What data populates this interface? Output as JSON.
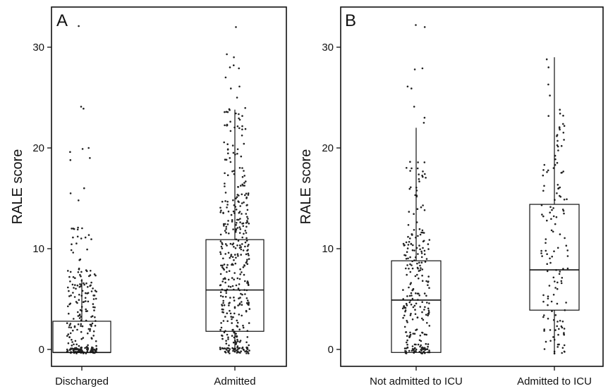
{
  "chart_data": [
    {
      "type": "box",
      "panel_label": "A",
      "ylabel": "RALE score",
      "ylim": [
        -1,
        33
      ],
      "yticks": [
        0,
        10,
        20,
        30
      ],
      "categories": [
        "Discharged",
        "Admitted"
      ],
      "boxes": [
        {
          "category": "Discharged",
          "q1": -0.3,
          "median": -0.3,
          "q3": 2.8,
          "whisker_low": -0.3,
          "whisker_high": 7.0
        },
        {
          "category": "Admitted",
          "q1": 1.8,
          "median": 5.9,
          "q3": 10.9,
          "whisker_low": -0.3,
          "whisker_high": 23.8
        }
      ],
      "points": [
        {
          "category": "Discharged",
          "n_at_zero": 90,
          "n_low": 140,
          "low_range": [
            0,
            8
          ],
          "n_mid": 16,
          "mid_range": [
            8,
            12.2
          ],
          "outliers": [
            32.1,
            24.1,
            23.9,
            20.0,
            19.9,
            19.6,
            19.0,
            18.8,
            16.0,
            15.5,
            14.8,
            12.1,
            12.0,
            12.0,
            11.9
          ]
        },
        {
          "category": "Admitted",
          "n_at_zero": 45,
          "n_low": 300,
          "low_range": [
            0,
            16
          ],
          "n_mid": 60,
          "mid_range": [
            16,
            24
          ],
          "outliers": [
            32.0,
            29.3,
            29.0,
            28.2,
            28.0,
            27.9,
            27.0,
            26.1,
            25.9,
            25.0
          ]
        }
      ]
    },
    {
      "type": "box",
      "panel_label": "B",
      "ylabel": "RALE score",
      "ylim": [
        -1,
        33
      ],
      "yticks": [
        0,
        10,
        20,
        30
      ],
      "categories": [
        "Not admitted to ICU",
        "Admitted to ICU"
      ],
      "boxes": [
        {
          "category": "Not admitted to ICU",
          "q1": -0.3,
          "median": 4.9,
          "q3": 8.8,
          "whisker_low": -0.3,
          "whisker_high": 22.0
        },
        {
          "category": "Admitted to ICU",
          "q1": 3.9,
          "median": 7.9,
          "q3": 14.4,
          "whisker_low": -0.5,
          "whisker_high": 29.0
        }
      ],
      "points": [
        {
          "category": "Not admitted to ICU",
          "n_at_zero": 40,
          "n_low": 190,
          "low_range": [
            0,
            12
          ],
          "n_mid": 30,
          "mid_range": [
            12,
            19
          ],
          "outliers": [
            32.2,
            32.0,
            27.9,
            27.8,
            26.1,
            25.9,
            24.1,
            23.0,
            22.5
          ]
        },
        {
          "category": "Admitted to ICU",
          "n_at_zero": 6,
          "n_low": 110,
          "low_range": [
            0,
            18
          ],
          "n_mid": 22,
          "mid_range": [
            18,
            23.5
          ],
          "outliers": [
            28.8,
            28.0,
            26.3,
            25.2,
            23.8,
            23.2
          ]
        }
      ]
    }
  ]
}
